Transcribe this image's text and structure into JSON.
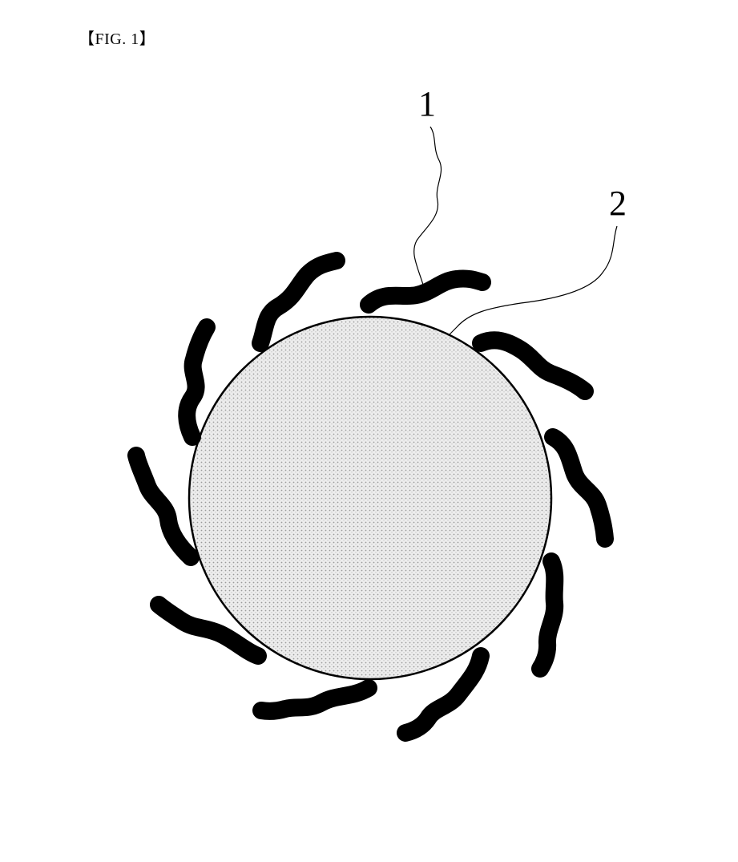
{
  "figure": {
    "title": "【FIG. 1】",
    "labels": {
      "ref_1": "1",
      "ref_2": "2"
    }
  },
  "colors": {
    "stroke": "#000000",
    "core_fill": "#e6e6e6",
    "background": "#ffffff"
  }
}
